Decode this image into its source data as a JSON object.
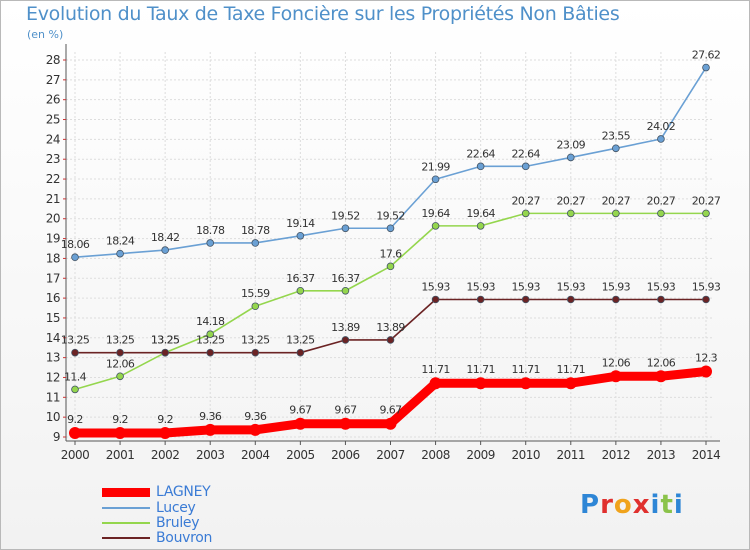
{
  "header": {
    "title": "Evolution du Taux de Taxe Foncière sur les Propriétés Non Bâties",
    "unit": "(en %)"
  },
  "logo": {
    "text": "Proxiti",
    "letter_colors": [
      "#2e86d6",
      "#e0302e",
      "#f0a31c",
      "#e0302e",
      "#2e86d6",
      "#8bc34a",
      "#2e86d6"
    ]
  },
  "chart_data": {
    "type": "line",
    "title": "Evolution du Taux de Taxe Foncière sur les Propriétés Non Bâties",
    "ylabel": "(en %)",
    "xlabel": "",
    "ylim": [
      9,
      28
    ],
    "grid": true,
    "legend_position": "bottom-left",
    "x": [
      2000,
      2001,
      2002,
      2003,
      2004,
      2005,
      2006,
      2007,
      2008,
      2009,
      2010,
      2011,
      2012,
      2013,
      2014
    ],
    "yticks": [
      9,
      10,
      11,
      12,
      13,
      14,
      15,
      16,
      17,
      18,
      19,
      20,
      21,
      22,
      23,
      24,
      25,
      26,
      27,
      28
    ],
    "series": [
      {
        "name": "LAGNEY",
        "color": "#ff0000",
        "values": [
          9.2,
          9.2,
          9.2,
          9.36,
          9.36,
          9.67,
          9.67,
          9.67,
          11.71,
          11.71,
          11.71,
          11.71,
          12.06,
          12.06,
          12.3
        ],
        "labels": [
          "9.2",
          "9.2",
          "9.2",
          "9.36",
          "9.36",
          "9.67",
          "9.67",
          "9.67",
          "11.71",
          "11.71",
          "11.71",
          "11.71",
          "12.06",
          "12.06",
          "12.3"
        ]
      },
      {
        "name": "Lucey",
        "color": "#6aa0d4",
        "values": [
          18.06,
          18.24,
          18.42,
          18.78,
          18.78,
          19.14,
          19.52,
          19.52,
          21.99,
          22.64,
          22.64,
          23.09,
          23.55,
          24.02,
          27.62
        ],
        "labels": [
          "18.06",
          "18.24",
          "18.42",
          "18.78",
          "18.78",
          "19.14",
          "19.52",
          "19.52",
          "21.99",
          "22.64",
          "22.64",
          "23.09",
          "23.55",
          "24.02",
          "27.62"
        ]
      },
      {
        "name": "Bruley",
        "color": "#94d64d",
        "values": [
          11.4,
          12.06,
          13.25,
          14.18,
          15.59,
          16.37,
          16.37,
          17.6,
          19.64,
          19.64,
          20.27,
          20.27,
          20.27,
          20.27,
          20.27
        ],
        "labels": [
          "11.4",
          "12.06",
          "13.25",
          "14.18",
          "15.59",
          "16.37",
          "16.37",
          "17.6",
          "19.64",
          "19.64",
          "20.27",
          "20.27",
          "20.27",
          "20.27",
          "20.27"
        ]
      },
      {
        "name": "Bouvron",
        "color": "#6b2324",
        "values": [
          13.25,
          13.25,
          13.25,
          13.25,
          13.25,
          13.25,
          13.89,
          13.89,
          15.93,
          15.93,
          15.93,
          15.93,
          15.93,
          15.93,
          15.93
        ],
        "labels": [
          "13.25",
          "13.25",
          "13.25",
          "13.25",
          "13.25",
          "13.25",
          "13.89",
          "13.89",
          "15.93",
          "15.93",
          "15.93",
          "15.93",
          "15.93",
          "15.93",
          "15.93"
        ]
      }
    ]
  }
}
